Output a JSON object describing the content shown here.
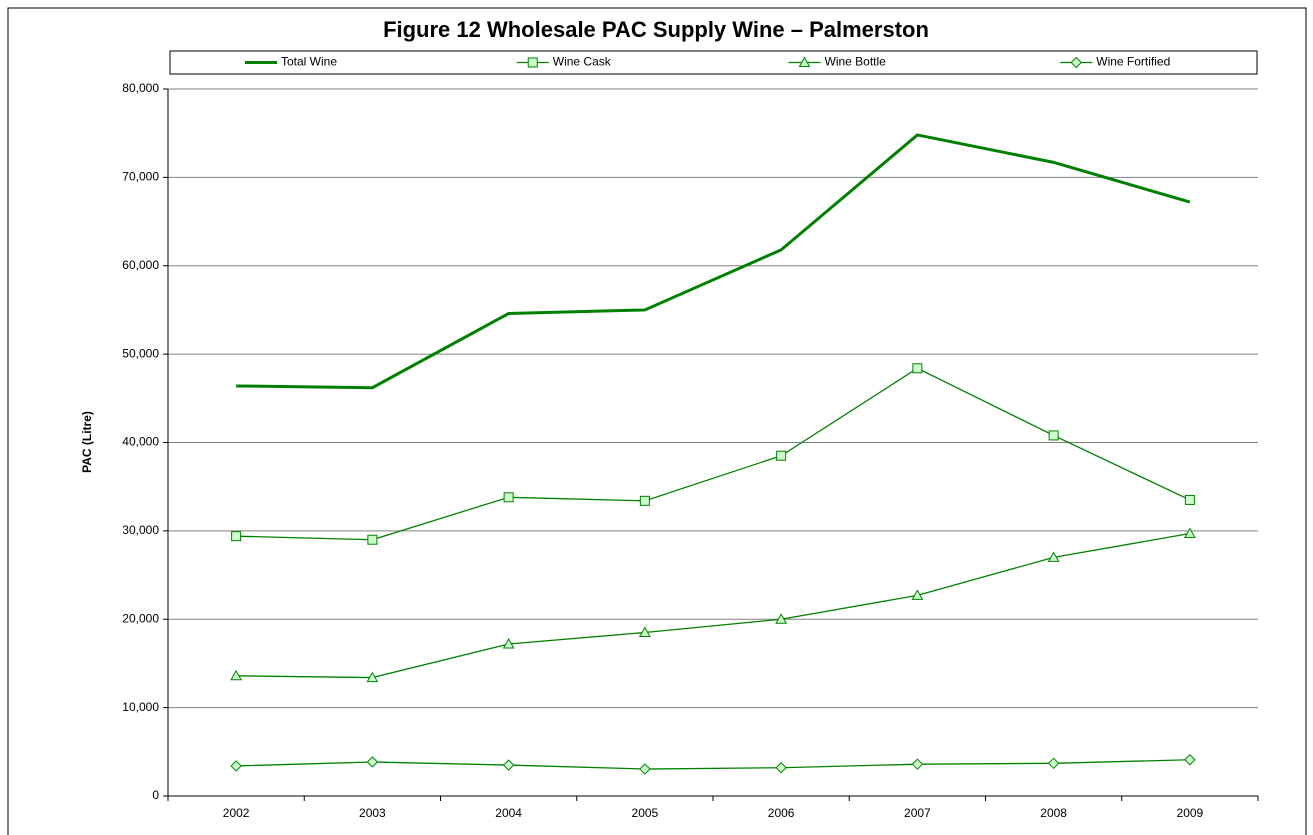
{
  "chart_data": {
    "type": "line",
    "title": "Figure 12 Wholesale PAC Supply Wine – Palmerston",
    "y_label": "PAC (Litre)",
    "categories": [
      "2002",
      "2003",
      "2004",
      "2005",
      "2006",
      "2007",
      "2008",
      "2009"
    ],
    "series": [
      {
        "name": "Total Wine",
        "color": "#008000",
        "marker": "none",
        "values": [
          46400,
          46200,
          54600,
          55000,
          61800,
          74800,
          71700,
          67200
        ]
      },
      {
        "name": "Wine Cask",
        "color": "#008000",
        "marker": "square",
        "values": [
          29400,
          29000,
          33800,
          33400,
          38500,
          48400,
          40800,
          33500
        ]
      },
      {
        "name": "Wine Bottle",
        "color": "#008000",
        "marker": "triangle",
        "values": [
          13600,
          13400,
          17200,
          18500,
          20000,
          22700,
          27000,
          29700
        ]
      },
      {
        "name": "Wine Fortified",
        "color": "#008000",
        "marker": "diamond",
        "values": [
          3400,
          3850,
          3500,
          3050,
          3200,
          3600,
          3700,
          4100
        ]
      }
    ],
    "ylim": [
      0,
      80000
    ],
    "yticks": [
      0,
      {
        "value": 10000,
        "label": "10,000"
      },
      {
        "value": 20000,
        "label": "20,000"
      },
      {
        "value": 30000,
        "label": "30,000"
      },
      {
        "value": 40000,
        "label": "40,000"
      },
      {
        "value": 50000,
        "label": "50,000"
      },
      {
        "value": 60000,
        "label": "60,000"
      },
      {
        "value": 70000,
        "label": "70,000"
      },
      {
        "value": 80000,
        "label": "80,000"
      }
    ],
    "grid": true,
    "legend": "top"
  }
}
